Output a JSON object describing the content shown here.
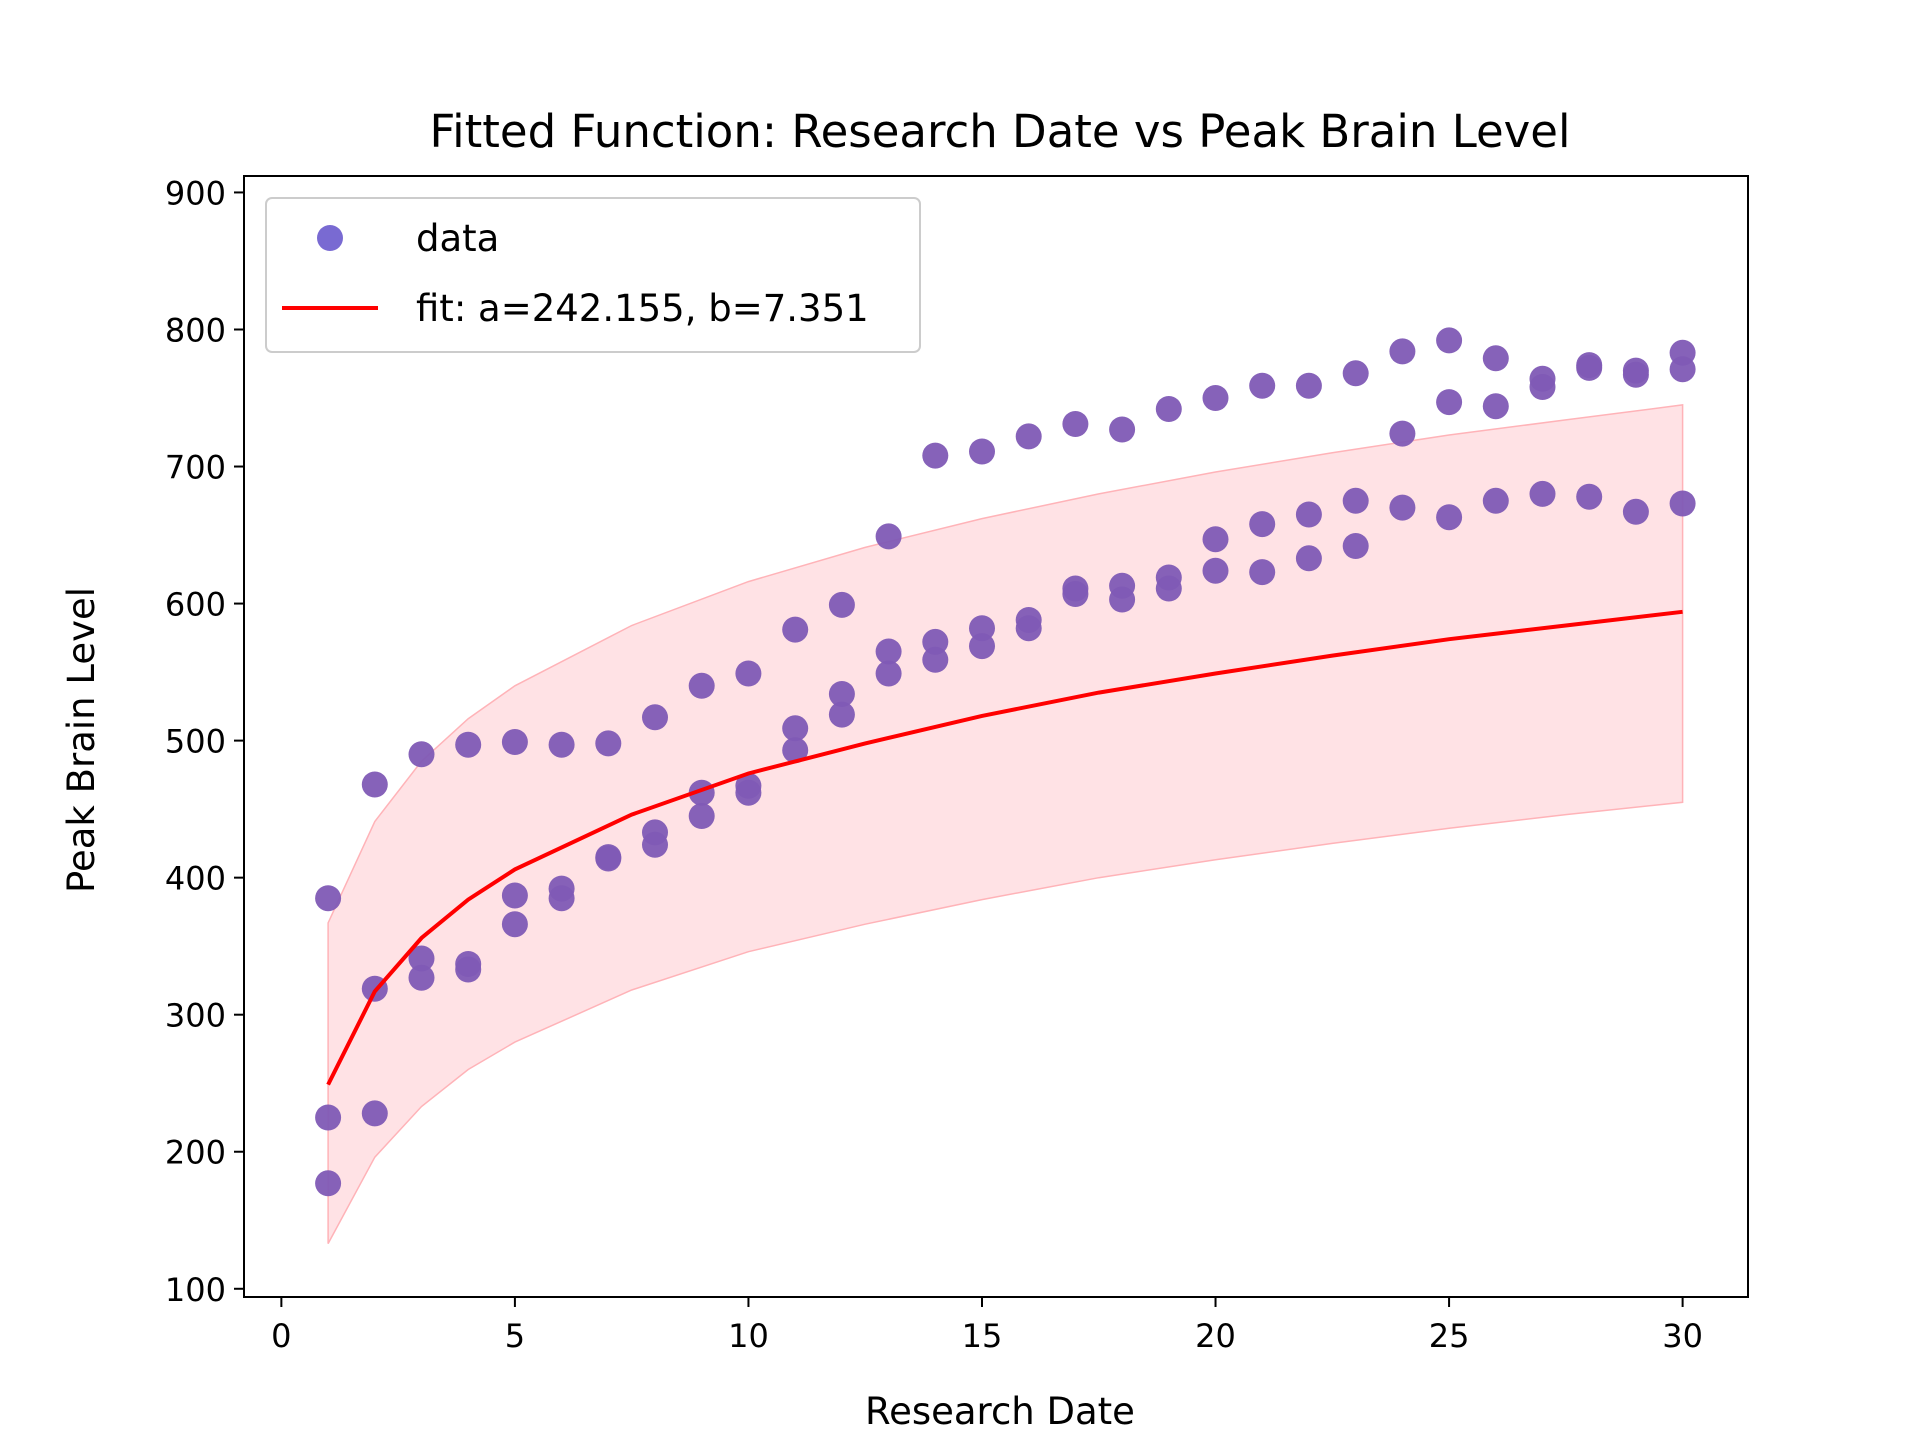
{
  "chart_data": {
    "type": "scatter",
    "title": "Fitted Function: Research Date vs Peak Brain Level",
    "xlabel": "Research Date",
    "ylabel": "Peak Brain Level",
    "xlim": [
      -0.8,
      31.4
    ],
    "ylim": [
      94,
      912
    ],
    "x_ticks": [
      0,
      5,
      10,
      15,
      20,
      25,
      30
    ],
    "y_ticks": [
      100,
      200,
      300,
      400,
      500,
      600,
      700,
      800,
      900
    ],
    "grid": false,
    "legend": {
      "placement": "upper-left",
      "entries": [
        {
          "label": "data",
          "kind": "marker",
          "color": "#6a5acd"
        },
        {
          "label": "fit: a=242.155, b=7.351",
          "kind": "line",
          "color": "#ff0000"
        }
      ]
    },
    "series": [
      {
        "name": "data",
        "kind": "scatter",
        "color": "#7f5ab5",
        "points": [
          [
            1,
            385
          ],
          [
            1,
            225
          ],
          [
            1,
            177
          ],
          [
            2,
            468
          ],
          [
            2,
            319
          ],
          [
            2,
            228
          ],
          [
            3,
            490
          ],
          [
            3,
            341
          ],
          [
            3,
            327
          ],
          [
            4,
            497
          ],
          [
            4,
            337
          ],
          [
            4,
            333
          ],
          [
            5,
            499
          ],
          [
            5,
            387
          ],
          [
            5,
            366
          ],
          [
            6,
            497
          ],
          [
            6,
            392
          ],
          [
            6,
            385
          ],
          [
            7,
            498
          ],
          [
            7,
            415
          ],
          [
            7,
            414
          ],
          [
            8,
            517
          ],
          [
            8,
            433
          ],
          [
            8,
            424
          ],
          [
            9,
            540
          ],
          [
            9,
            462
          ],
          [
            9,
            445
          ],
          [
            10,
            549
          ],
          [
            10,
            467
          ],
          [
            10,
            462
          ],
          [
            11,
            581
          ],
          [
            11,
            509
          ],
          [
            11,
            493
          ],
          [
            12,
            599
          ],
          [
            12,
            534
          ],
          [
            12,
            519
          ],
          [
            13,
            649
          ],
          [
            13,
            565
          ],
          [
            13,
            549
          ],
          [
            14,
            708
          ],
          [
            14,
            572
          ],
          [
            14,
            559
          ],
          [
            15,
            711
          ],
          [
            15,
            582
          ],
          [
            15,
            569
          ],
          [
            16,
            722
          ],
          [
            16,
            588
          ],
          [
            16,
            582
          ],
          [
            17,
            731
          ],
          [
            17,
            611
          ],
          [
            17,
            607
          ],
          [
            18,
            727
          ],
          [
            18,
            613
          ],
          [
            18,
            603
          ],
          [
            19,
            742
          ],
          [
            19,
            619
          ],
          [
            19,
            611
          ],
          [
            20,
            750
          ],
          [
            20,
            647
          ],
          [
            20,
            624
          ],
          [
            21,
            759
          ],
          [
            21,
            658
          ],
          [
            21,
            623
          ],
          [
            22,
            759
          ],
          [
            22,
            665
          ],
          [
            22,
            633
          ],
          [
            23,
            768
          ],
          [
            23,
            675
          ],
          [
            23,
            642
          ],
          [
            24,
            784
          ],
          [
            24,
            724
          ],
          [
            24,
            670
          ],
          [
            25,
            792
          ],
          [
            25,
            747
          ],
          [
            25,
            663
          ],
          [
            26,
            779
          ],
          [
            26,
            744
          ],
          [
            26,
            675
          ],
          [
            27,
            764
          ],
          [
            27,
            758
          ],
          [
            27,
            680
          ],
          [
            28,
            774
          ],
          [
            28,
            772
          ],
          [
            28,
            678
          ],
          [
            29,
            770
          ],
          [
            29,
            767
          ],
          [
            29,
            667
          ],
          [
            30,
            783
          ],
          [
            30,
            771
          ],
          [
            30,
            673
          ]
        ]
      },
      {
        "name": "fit: a=242.155, b=7.351",
        "kind": "fit",
        "color": "#ff0000",
        "x": [
          1,
          2,
          3,
          4,
          5,
          7.5,
          10,
          12.5,
          15,
          17.5,
          20,
          22.5,
          25,
          27.5,
          30
        ],
        "y": [
          249,
          317,
          356,
          384,
          406,
          446,
          476,
          498,
          518,
          535,
          549,
          562,
          574,
          584,
          594
        ],
        "band_lower": [
          133,
          196,
          233,
          260,
          280,
          318,
          346,
          366,
          384,
          400,
          413,
          425,
          436,
          446,
          455
        ],
        "band_upper": [
          367,
          441,
          485,
          516,
          540,
          584,
          616,
          641,
          662,
          680,
          696,
          710,
          723,
          734,
          745
        ]
      }
    ]
  }
}
